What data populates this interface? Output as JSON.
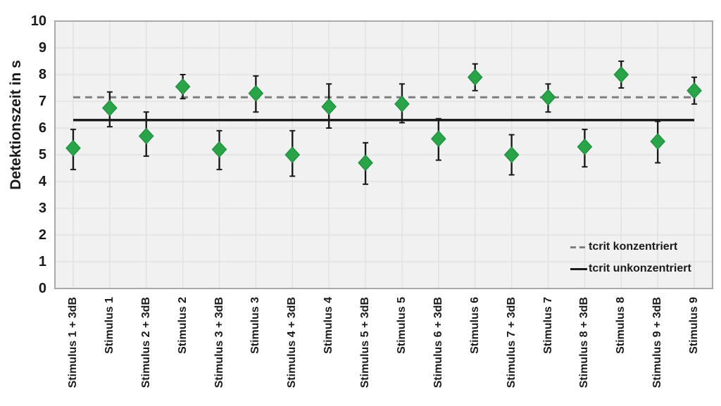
{
  "chart_data": {
    "type": "scatter",
    "title": "",
    "xlabel": "",
    "ylabel": "Detektionszeit in s",
    "ylim": [
      0,
      10
    ],
    "ytick_step": 1,
    "grid": true,
    "legend_position": "inside-bottom-right",
    "categories": [
      "Stimulus 1 + 3dB",
      "Stimulus 1",
      "Stimulus 2 + 3dB",
      "Stimulus 2",
      "Stimulus 3 + 3dB",
      "Stimulus 3",
      "Stimulus 4 + 3dB",
      "Stimulus 4",
      "Stimulus 5 + 3dB",
      "Stimulus 5",
      "Stimulus 6 + 3dB",
      "Stimulus 6",
      "Stimulus 7 + 3dB",
      "Stimulus 7",
      "Stimulus 8 + 3dB",
      "Stimulus 8",
      "Stimulus 9 + 3dB",
      "Stimulus 9"
    ],
    "series": [
      {
        "name": "Detektionszeit",
        "marker": "diamond",
        "values": [
          5.25,
          6.75,
          5.7,
          7.55,
          5.2,
          7.3,
          5.0,
          6.8,
          4.7,
          6.9,
          5.6,
          7.9,
          5.0,
          7.15,
          5.3,
          8.0,
          5.5,
          7.4
        ],
        "err_lower": [
          4.45,
          6.05,
          4.95,
          7.1,
          4.45,
          6.6,
          4.2,
          6.0,
          3.9,
          6.2,
          4.8,
          7.4,
          4.25,
          6.6,
          4.55,
          7.5,
          4.7,
          6.9
        ],
        "err_upper": [
          5.95,
          7.35,
          6.6,
          8.0,
          5.9,
          7.95,
          5.9,
          7.65,
          5.45,
          7.65,
          6.35,
          8.4,
          5.75,
          7.65,
          5.95,
          8.5,
          6.25,
          7.9
        ]
      }
    ],
    "reference_lines": [
      {
        "label": "tcrit konzentriert",
        "value": 7.15,
        "style": "dashed",
        "color": "#7f7f7f"
      },
      {
        "label": "tcrit unkonzentriert",
        "value": 6.3,
        "style": "solid",
        "color": "#1a1a1a"
      }
    ]
  },
  "colors": {
    "marker_fill": "#29a449",
    "marker_stroke": "#1d8c3d",
    "error_bar": "#1a1a1a",
    "plot_background": "#f1f1f1",
    "gridline": "#e2e2e2",
    "plot_border": "#a9a9a9",
    "text": "#1a1a1a"
  }
}
